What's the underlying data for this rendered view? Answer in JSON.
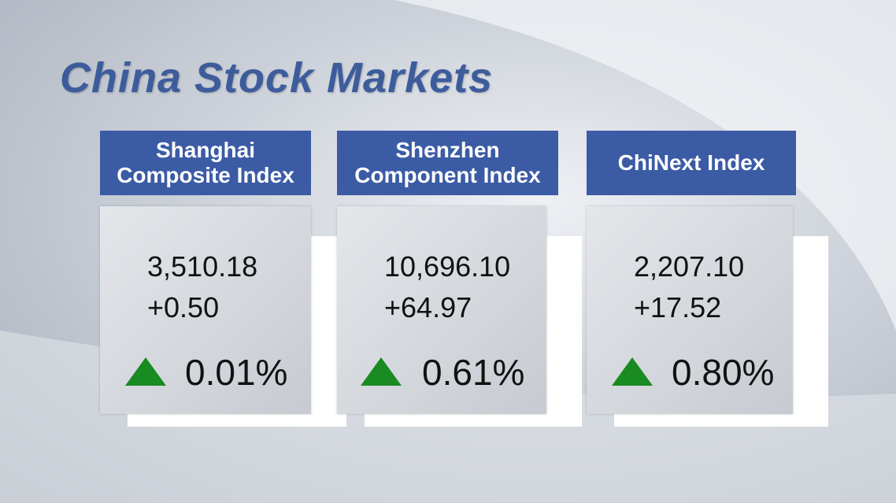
{
  "title": "China Stock Markets",
  "cards": [
    {
      "name_lines": [
        "Shanghai",
        "Composite Index"
      ],
      "value": "3,510.18",
      "change": "+0.50",
      "percent": "0.01%"
    },
    {
      "name_lines": [
        "Shenzhen",
        "Component Index"
      ],
      "value": "10,696.10",
      "change": "+64.97",
      "percent": "0.61%"
    },
    {
      "name_lines": [
        "ChiNext Index"
      ],
      "value": "2,207.10",
      "change": "+17.52",
      "percent": "0.80%"
    }
  ]
}
